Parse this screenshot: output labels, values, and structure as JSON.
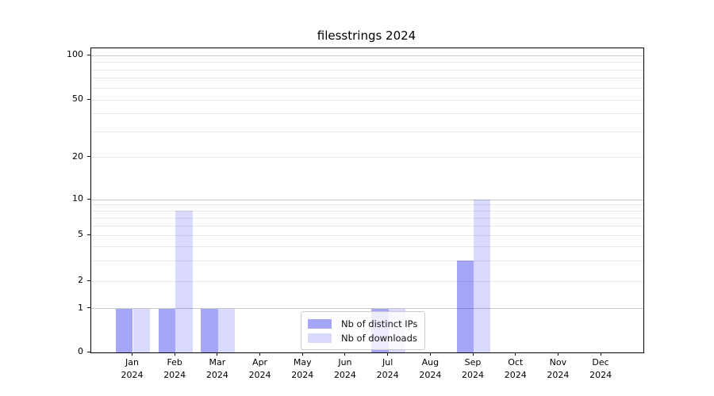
{
  "chart_data": {
    "type": "bar",
    "title": "filesstrings 2024",
    "categories": [
      "Jan 2024",
      "Feb 2024",
      "Mar 2024",
      "Apr 2024",
      "May 2024",
      "Jun 2024",
      "Jul 2024",
      "Aug 2024",
      "Sep 2024",
      "Oct 2024",
      "Nov 2024",
      "Dec 2024"
    ],
    "series": [
      {
        "name": "Nb of distinct IPs",
        "color": "rgba(0,0,230,0.35)",
        "values": [
          1,
          1,
          1,
          0,
          0,
          0,
          1,
          0,
          3,
          0,
          0,
          0
        ]
      },
      {
        "name": "Nb of downloads",
        "color": "rgba(0,0,230,0.15)",
        "values": [
          1,
          8,
          1,
          0,
          0,
          0,
          1,
          0,
          10,
          0,
          0,
          0
        ]
      }
    ],
    "xlabel": "",
    "ylabel": "",
    "y_axis": {
      "scale": "symlog",
      "tick_values": [
        0,
        1,
        2,
        5,
        10,
        20,
        50,
        100
      ],
      "major_grid_values": [
        1,
        10,
        100
      ],
      "minor_grid_values": [
        2,
        3,
        4,
        5,
        6,
        7,
        8,
        9,
        20,
        30,
        40,
        50,
        60,
        70,
        80,
        90
      ],
      "range": [
        0,
        112
      ]
    },
    "grid": true,
    "legend_position": "lower center",
    "colors": {
      "spine": "#000000",
      "major_grid": "#c8c8c8",
      "minor_grid": "#e9e9e9",
      "legend_border": "#cccccc",
      "text": "#000000"
    }
  }
}
